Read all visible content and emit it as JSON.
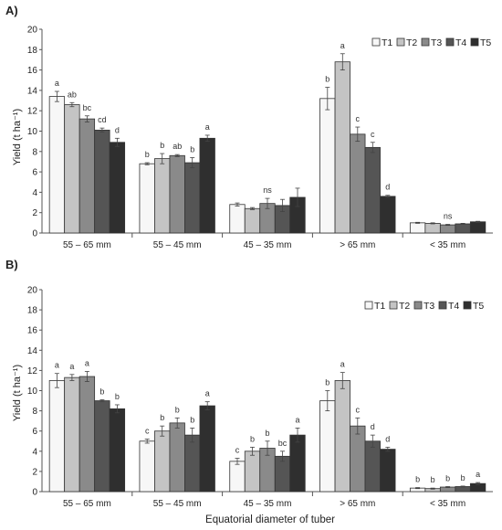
{
  "figure": {
    "xlabel": "Equatorial diameter of tuber",
    "colors": {
      "T1": "#f7f7f7",
      "T2": "#c4c4c4",
      "T3": "#8a8a8a",
      "T4": "#555555",
      "T5": "#2f2f2f"
    }
  },
  "chart_data": [
    {
      "type": "bar",
      "panel_label": "A)",
      "ylabel": "Yield (t ha⁻¹)",
      "ylim": [
        0,
        20
      ],
      "yticks": [
        "0",
        "2",
        "4",
        "6",
        "8",
        "10",
        "12",
        "14",
        "16",
        "18",
        "20"
      ],
      "grid": false,
      "legend_position": "top-right",
      "categories": [
        "55 – 65 mm",
        "55 – 45 mm",
        "45 – 35 mm",
        "> 65 mm",
        "< 35 mm"
      ],
      "series": [
        {
          "name": "T1",
          "values": [
            13.4,
            6.8,
            2.8,
            13.2,
            1.0
          ],
          "errors": [
            0.5,
            0.1,
            0.15,
            1.1,
            0.05
          ]
        },
        {
          "name": "T2",
          "values": [
            12.6,
            7.3,
            2.4,
            16.8,
            0.95
          ],
          "errors": [
            0.2,
            0.5,
            0.1,
            0.8,
            0.05
          ]
        },
        {
          "name": "T3",
          "values": [
            11.2,
            7.6,
            2.9,
            9.7,
            0.8
          ],
          "errors": [
            0.3,
            0.1,
            0.5,
            0.7,
            0.05
          ]
        },
        {
          "name": "T4",
          "values": [
            10.1,
            6.9,
            2.7,
            8.4,
            0.9
          ],
          "errors": [
            0.2,
            0.5,
            0.6,
            0.5,
            0.05
          ]
        },
        {
          "name": "T5",
          "values": [
            8.9,
            9.3,
            3.5,
            3.6,
            1.1
          ],
          "errors": [
            0.4,
            0.3,
            0.9,
            0.1,
            0.05
          ]
        }
      ],
      "annotations": [
        [
          "a",
          "ab",
          "bc",
          "cd",
          "d"
        ],
        [
          "b",
          "b",
          "ab",
          "b",
          "a"
        ],
        [
          "",
          "",
          "ns",
          "",
          ""
        ],
        [
          "b",
          "a",
          "c",
          "c",
          "d"
        ],
        [
          "",
          "",
          "ns",
          "",
          ""
        ]
      ]
    },
    {
      "type": "bar",
      "panel_label": "B)",
      "ylabel": "Yield (t ha⁻¹)",
      "ylim": [
        0,
        20
      ],
      "yticks": [
        "0",
        "2",
        "4",
        "6",
        "8",
        "10",
        "12",
        "14",
        "16",
        "18",
        "20"
      ],
      "grid": false,
      "legend_position": "top-right",
      "categories": [
        "55 – 65 mm",
        "55 – 45 mm",
        "45 – 35 mm",
        "> 65 mm",
        "< 35 mm"
      ],
      "series": [
        {
          "name": "T1",
          "values": [
            11.0,
            5.0,
            3.0,
            9.0,
            0.35
          ],
          "errors": [
            0.7,
            0.2,
            0.3,
            1.0,
            0.05
          ]
        },
        {
          "name": "T2",
          "values": [
            11.3,
            6.0,
            4.0,
            11.0,
            0.3
          ],
          "errors": [
            0.3,
            0.5,
            0.4,
            0.8,
            0.05
          ]
        },
        {
          "name": "T3",
          "values": [
            11.4,
            6.8,
            4.3,
            6.5,
            0.45
          ],
          "errors": [
            0.5,
            0.5,
            0.7,
            0.8,
            0.05
          ]
        },
        {
          "name": "T4",
          "values": [
            9.0,
            5.6,
            3.5,
            5.0,
            0.5
          ],
          "errors": [
            0.1,
            0.7,
            0.5,
            0.6,
            0.05
          ]
        },
        {
          "name": "T5",
          "values": [
            8.2,
            8.5,
            5.6,
            4.2,
            0.8
          ],
          "errors": [
            0.4,
            0.4,
            0.7,
            0.2,
            0.1
          ]
        }
      ],
      "annotations": [
        [
          "a",
          "a",
          "a",
          "b",
          "b"
        ],
        [
          "c",
          "b",
          "b",
          "b",
          "a"
        ],
        [
          "c",
          "b",
          "b",
          "bc",
          "a"
        ],
        [
          "b",
          "a",
          "c",
          "d",
          "d"
        ],
        [
          "b",
          "b",
          "b",
          "b",
          "a"
        ]
      ]
    }
  ]
}
